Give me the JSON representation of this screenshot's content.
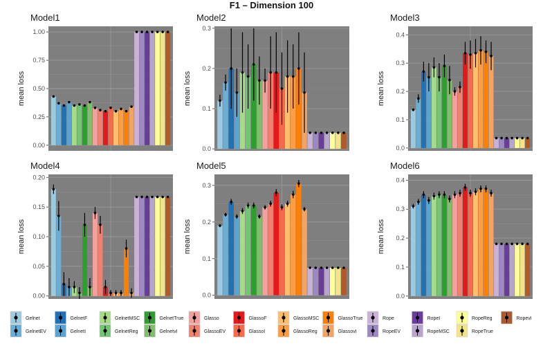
{
  "title": "F1 – Dimension 100",
  "ylabel": "mean loss",
  "method_order": [
    "Gelnet",
    "GelnetEV",
    "GelnetF",
    "GelnetI",
    "GelnetMSC",
    "GelnetReg",
    "GelnetTrue",
    "GelnetvI",
    "Glasso",
    "GlassoEV",
    "GlassoF",
    "GlassoI",
    "GlassoMSC",
    "GlassoReg",
    "GlassoTrue",
    "GlassovI",
    "Rope",
    "RopeEV",
    "RopeI",
    "RopeMSC",
    "RopeReg",
    "RopeTrue",
    "RopevI"
  ],
  "colors": [
    "#9ecae1",
    "#6aaed6",
    "#2171b5",
    "#5ba3d0",
    "#a6db8a",
    "#74c476",
    "#2ca02c",
    "#7fbf6a",
    "#f4a09c",
    "#f08070",
    "#e31a1c",
    "#f26b4c",
    "#fdbf6f",
    "#fd9e44",
    "#ff7f00",
    "#f4a460",
    "#cab2d6",
    "#9e88c4",
    "#6a3d9a",
    "#b7a5cf",
    "#ffff99",
    "#f1e48a",
    "#b15928"
  ],
  "chart_data": [
    {
      "type": "bar",
      "title": "Model1",
      "ylabel": "mean loss",
      "ylim": [
        -0.05,
        1.05
      ],
      "yticks": [
        0.0,
        0.25,
        0.5,
        0.75,
        1.0
      ],
      "ytick_labels": [
        "0.00",
        "0.25",
        "0.50",
        "0.75",
        "1.00"
      ],
      "values": [
        0.43,
        0.37,
        0.35,
        0.38,
        0.35,
        0.36,
        0.35,
        0.38,
        0.33,
        0.31,
        0.3,
        0.33,
        0.3,
        0.32,
        0.3,
        0.34,
        1.0,
        1.0,
        1.0,
        1.0,
        1.0,
        1.0,
        1.0
      ],
      "errors": [
        0.01,
        0.01,
        0.01,
        0.01,
        0.01,
        0.01,
        0.01,
        0.01,
        0.01,
        0.01,
        0.01,
        0.01,
        0.01,
        0.01,
        0.01,
        0.01,
        0.003,
        0.003,
        0.003,
        0.003,
        0.003,
        0.003,
        0.003
      ]
    },
    {
      "type": "bar",
      "title": "Model2",
      "ylabel": "mean loss",
      "ylim": [
        -0.005,
        0.305
      ],
      "yticks": [
        0.0,
        0.1,
        0.2,
        0.3
      ],
      "ytick_labels": [
        "0.0",
        "0.1",
        "0.2",
        "0.3"
      ],
      "values": [
        0.12,
        0.165,
        0.2,
        0.14,
        0.19,
        0.18,
        0.21,
        0.17,
        0.17,
        0.19,
        0.19,
        0.15,
        0.18,
        0.18,
        0.2,
        0.14,
        0.04,
        0.04,
        0.04,
        0.04,
        0.04,
        0.04,
        0.04
      ],
      "errors": [
        0.015,
        0.02,
        0.1,
        0.06,
        0.1,
        0.08,
        0.09,
        0.06,
        0.03,
        0.09,
        0.1,
        0.09,
        0.09,
        0.08,
        0.09,
        0.1,
        0.002,
        0.002,
        0.002,
        0.002,
        0.002,
        0.002,
        0.002
      ]
    },
    {
      "type": "bar",
      "title": "Model3",
      "ylabel": "mean loss",
      "ylim": [
        -0.01,
        0.43
      ],
      "yticks": [
        0.0,
        0.1,
        0.2,
        0.3,
        0.4
      ],
      "ytick_labels": [
        "0.0",
        "0.1",
        "0.2",
        "0.3",
        "0.4"
      ],
      "values": [
        0.135,
        0.175,
        0.27,
        0.25,
        0.285,
        0.25,
        0.29,
        0.24,
        0.2,
        0.215,
        0.335,
        0.33,
        0.335,
        0.345,
        0.34,
        0.325,
        0.035,
        0.035,
        0.035,
        0.035,
        0.035,
        0.035,
        0.035
      ],
      "errors": [
        0.005,
        0.015,
        0.035,
        0.05,
        0.035,
        0.05,
        0.04,
        0.05,
        0.015,
        0.02,
        0.04,
        0.05,
        0.05,
        0.05,
        0.04,
        0.05,
        0.002,
        0.002,
        0.002,
        0.002,
        0.002,
        0.002,
        0.002
      ]
    },
    {
      "type": "bar",
      "title": "Model4",
      "ylabel": "mean loss",
      "ylim": [
        -0.005,
        0.205
      ],
      "yticks": [
        0.0,
        0.05,
        0.1,
        0.15,
        0.2
      ],
      "ytick_labels": [
        "0.00",
        "0.05",
        "0.10",
        "0.15",
        "0.20"
      ],
      "values": [
        0.18,
        0.135,
        0.02,
        0.015,
        0.015,
        0.005,
        0.12,
        0.015,
        0.14,
        0.12,
        0.015,
        0.005,
        0.005,
        0.005,
        0.08,
        0.005,
        0.167,
        0.167,
        0.167,
        0.167,
        0.167,
        0.167,
        0.167
      ],
      "errors": [
        0.008,
        0.025,
        0.02,
        0.015,
        0.01,
        0.01,
        0.02,
        0.015,
        0.01,
        0.015,
        0.012,
        0.005,
        0.005,
        0.005,
        0.015,
        0.008,
        0.001,
        0.001,
        0.001,
        0.001,
        0.001,
        0.001,
        0.001
      ]
    },
    {
      "type": "bar",
      "title": "Model5",
      "ylabel": "mean loss",
      "ylim": [
        -0.01,
        0.33
      ],
      "yticks": [
        0.0,
        0.1,
        0.2,
        0.3
      ],
      "ytick_labels": [
        "0.0",
        "0.1",
        "0.2",
        "0.3"
      ],
      "values": [
        0.19,
        0.22,
        0.255,
        0.215,
        0.23,
        0.245,
        0.245,
        0.215,
        0.24,
        0.25,
        0.28,
        0.24,
        0.25,
        0.275,
        0.305,
        0.235,
        0.075,
        0.075,
        0.075,
        0.075,
        0.075,
        0.075,
        0.075
      ],
      "errors": [
        0.004,
        0.005,
        0.008,
        0.006,
        0.008,
        0.008,
        0.008,
        0.006,
        0.006,
        0.008,
        0.01,
        0.008,
        0.008,
        0.01,
        0.01,
        0.006,
        0.002,
        0.002,
        0.002,
        0.002,
        0.002,
        0.002,
        0.002
      ]
    },
    {
      "type": "bar",
      "title": "Model6",
      "ylabel": "mean loss",
      "ylim": [
        -0.01,
        0.42
      ],
      "yticks": [
        0.0,
        0.1,
        0.2,
        0.3,
        0.4
      ],
      "ytick_labels": [
        "0.0",
        "0.1",
        "0.2",
        "0.3",
        "0.4"
      ],
      "values": [
        0.31,
        0.325,
        0.35,
        0.33,
        0.345,
        0.35,
        0.35,
        0.335,
        0.35,
        0.355,
        0.375,
        0.355,
        0.36,
        0.37,
        0.37,
        0.355,
        0.18,
        0.18,
        0.18,
        0.18,
        0.18,
        0.18,
        0.18
      ],
      "errors": [
        0.008,
        0.01,
        0.012,
        0.012,
        0.012,
        0.012,
        0.012,
        0.012,
        0.012,
        0.012,
        0.012,
        0.012,
        0.012,
        0.012,
        0.012,
        0.012,
        0.004,
        0.004,
        0.004,
        0.004,
        0.004,
        0.004,
        0.004
      ]
    }
  ],
  "legend": {
    "top": [
      {
        "label": "Gelnet",
        "color": "#9ecae1"
      },
      {
        "label": "GelnetF",
        "color": "#2171b5"
      },
      {
        "label": "GelnetMSC",
        "color": "#a6db8a"
      },
      {
        "label": "GelnetTrue",
        "color": "#2ca02c"
      },
      {
        "label": "Glasso",
        "color": "#f4a09c"
      },
      {
        "label": "GlassoF",
        "color": "#e31a1c"
      },
      {
        "label": "GlassoMSC",
        "color": "#fdbf6f"
      },
      {
        "label": "GlassoTrue",
        "color": "#ff7f00"
      },
      {
        "label": "Rope",
        "color": "#cab2d6"
      },
      {
        "label": "RopeI",
        "color": "#6a3d9a"
      },
      {
        "label": "RopeReg",
        "color": "#ffff99"
      },
      {
        "label": "RopevI",
        "color": "#b15928"
      }
    ],
    "bottom": [
      {
        "label": "GelnetEV",
        "color": "#6aaed6"
      },
      {
        "label": "GelnetI",
        "color": "#5ba3d0"
      },
      {
        "label": "GelnetReg",
        "color": "#74c476"
      },
      {
        "label": "GelnetvI",
        "color": "#7fbf6a"
      },
      {
        "label": "GlassoEV",
        "color": "#f08070"
      },
      {
        "label": "GlassoI",
        "color": "#f26b4c"
      },
      {
        "label": "GlassoReg",
        "color": "#fd9e44"
      },
      {
        "label": "GlassovI",
        "color": "#f4a460"
      },
      {
        "label": "RopeEV",
        "color": "#9e88c4"
      },
      {
        "label": "RopeMSC",
        "color": "#b7a5cf"
      },
      {
        "label": "RopeTrue",
        "color": "#f1e48a"
      }
    ]
  }
}
